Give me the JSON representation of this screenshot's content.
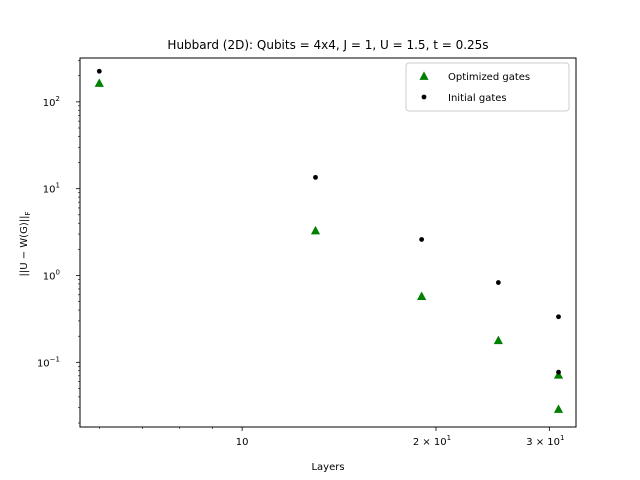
{
  "chart_data": {
    "type": "scatter",
    "title": "Hubbard (2D): Qubits = 4x4, J = 1, U = 1.5, t = 0.25s",
    "xlabel": "Layers",
    "ylabel": "||U − W(G)||_F",
    "ylabel_main": "||U − W(G)||",
    "ylabel_sub": "F",
    "xscale": "log",
    "yscale": "log",
    "xlim": [
      5.6,
      33
    ],
    "ylim": [
      0.018,
      320
    ],
    "xticks": [
      {
        "value": 10,
        "base": "10",
        "exp": ""
      },
      {
        "value": 20,
        "base": "2 × 10",
        "exp": "1"
      },
      {
        "value": 30,
        "base": "3 × 10",
        "exp": "1"
      }
    ],
    "yticks": [
      {
        "value": 0.1,
        "base": "10",
        "exp": "−1"
      },
      {
        "value": 1,
        "base": "10",
        "exp": "0"
      },
      {
        "value": 10,
        "base": "10",
        "exp": "1"
      },
      {
        "value": 100,
        "base": "10",
        "exp": "2"
      }
    ],
    "grid": false,
    "legend_position": "top-right",
    "series": [
      {
        "name": "Optimized gates",
        "marker": "triangle",
        "color": "#008000",
        "x": [
          6,
          13,
          19,
          25,
          31,
          31
        ],
        "y": [
          165,
          3.3,
          0.58,
          0.18,
          0.072,
          0.029
        ]
      },
      {
        "name": "Initial gates",
        "marker": "dot",
        "color": "#000000",
        "x": [
          6,
          13,
          19,
          25,
          31,
          31
        ],
        "y": [
          225,
          13.5,
          2.6,
          0.83,
          0.335,
          0.077
        ]
      }
    ]
  }
}
